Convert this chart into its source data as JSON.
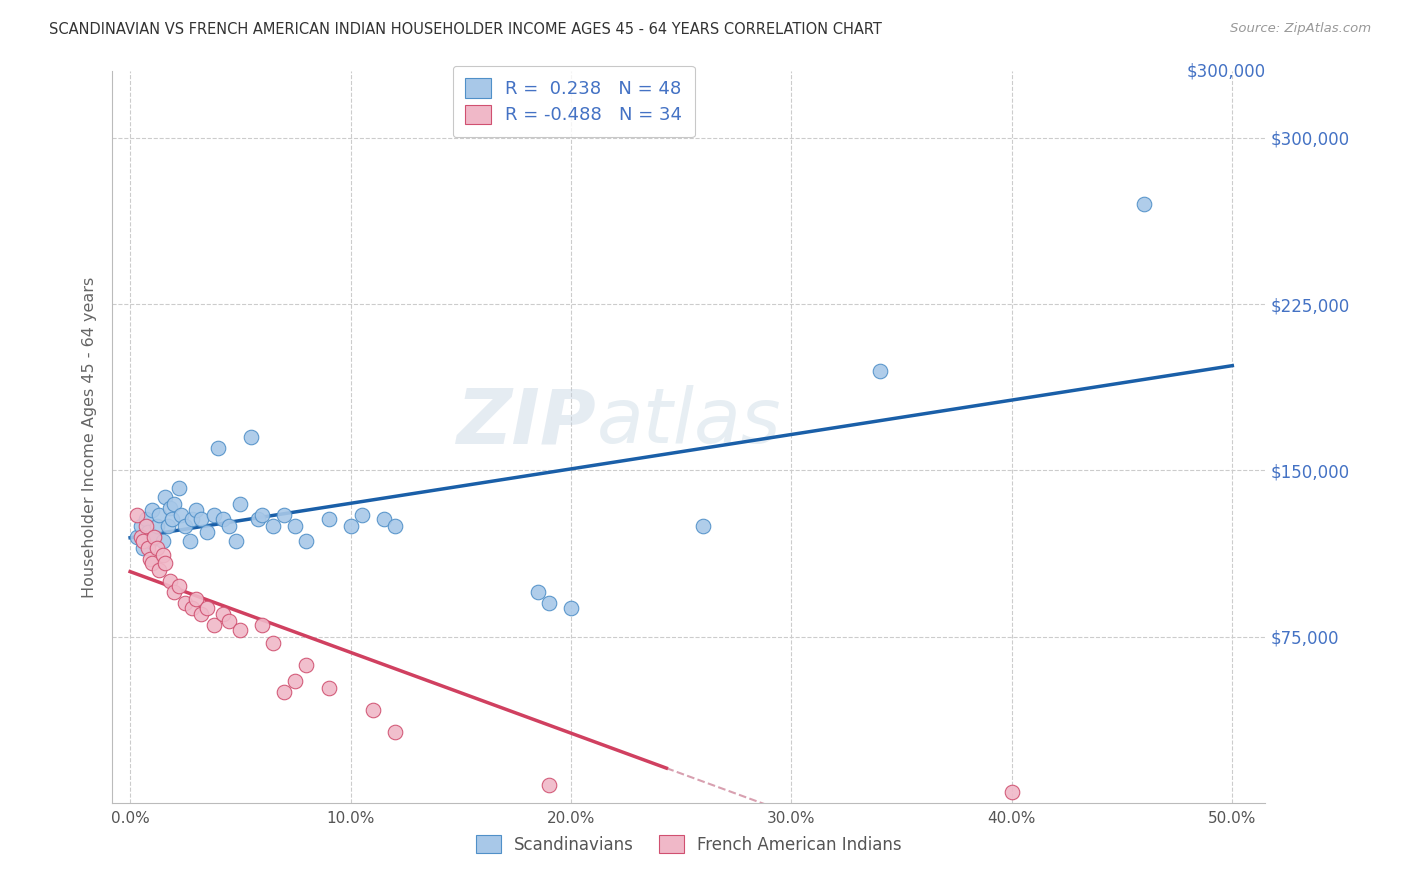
{
  "title": "SCANDINAVIAN VS FRENCH AMERICAN INDIAN HOUSEHOLDER INCOME AGES 45 - 64 YEARS CORRELATION CHART",
  "source": "Source: ZipAtlas.com",
  "ylabel": "Householder Income Ages 45 - 64 years",
  "xlabel_ticks": [
    "0.0%",
    "10.0%",
    "20.0%",
    "30.0%",
    "40.0%",
    "50.0%"
  ],
  "xlabel_vals": [
    0.0,
    0.1,
    0.2,
    0.3,
    0.4,
    0.5
  ],
  "ytick_labels": [
    "$75,000",
    "$150,000",
    "$225,000",
    "$300,000"
  ],
  "ytick_vals": [
    75000,
    150000,
    225000,
    300000
  ],
  "ylim": [
    0,
    330000
  ],
  "xlim": [
    -0.008,
    0.515
  ],
  "watermark_zip": "ZIP",
  "watermark_atlas": "atlas",
  "blue_scatter": [
    [
      0.003,
      120000
    ],
    [
      0.005,
      125000
    ],
    [
      0.006,
      115000
    ],
    [
      0.007,
      128000
    ],
    [
      0.008,
      122000
    ],
    [
      0.009,
      118000
    ],
    [
      0.01,
      132000
    ],
    [
      0.011,
      120000
    ],
    [
      0.012,
      125000
    ],
    [
      0.013,
      130000
    ],
    [
      0.015,
      118000
    ],
    [
      0.016,
      138000
    ],
    [
      0.017,
      125000
    ],
    [
      0.018,
      133000
    ],
    [
      0.019,
      128000
    ],
    [
      0.02,
      135000
    ],
    [
      0.022,
      142000
    ],
    [
      0.023,
      130000
    ],
    [
      0.025,
      125000
    ],
    [
      0.027,
      118000
    ],
    [
      0.028,
      128000
    ],
    [
      0.03,
      132000
    ],
    [
      0.032,
      128000
    ],
    [
      0.035,
      122000
    ],
    [
      0.038,
      130000
    ],
    [
      0.04,
      160000
    ],
    [
      0.042,
      128000
    ],
    [
      0.045,
      125000
    ],
    [
      0.048,
      118000
    ],
    [
      0.05,
      135000
    ],
    [
      0.055,
      165000
    ],
    [
      0.058,
      128000
    ],
    [
      0.06,
      130000
    ],
    [
      0.065,
      125000
    ],
    [
      0.07,
      130000
    ],
    [
      0.075,
      125000
    ],
    [
      0.08,
      118000
    ],
    [
      0.09,
      128000
    ],
    [
      0.1,
      125000
    ],
    [
      0.105,
      130000
    ],
    [
      0.115,
      128000
    ],
    [
      0.12,
      125000
    ],
    [
      0.185,
      95000
    ],
    [
      0.19,
      90000
    ],
    [
      0.2,
      88000
    ],
    [
      0.26,
      125000
    ],
    [
      0.34,
      195000
    ],
    [
      0.46,
      270000
    ]
  ],
  "pink_scatter": [
    [
      0.003,
      130000
    ],
    [
      0.005,
      120000
    ],
    [
      0.006,
      118000
    ],
    [
      0.007,
      125000
    ],
    [
      0.008,
      115000
    ],
    [
      0.009,
      110000
    ],
    [
      0.01,
      108000
    ],
    [
      0.011,
      120000
    ],
    [
      0.012,
      115000
    ],
    [
      0.013,
      105000
    ],
    [
      0.015,
      112000
    ],
    [
      0.016,
      108000
    ],
    [
      0.018,
      100000
    ],
    [
      0.02,
      95000
    ],
    [
      0.022,
      98000
    ],
    [
      0.025,
      90000
    ],
    [
      0.028,
      88000
    ],
    [
      0.03,
      92000
    ],
    [
      0.032,
      85000
    ],
    [
      0.035,
      88000
    ],
    [
      0.038,
      80000
    ],
    [
      0.042,
      85000
    ],
    [
      0.045,
      82000
    ],
    [
      0.05,
      78000
    ],
    [
      0.06,
      80000
    ],
    [
      0.065,
      72000
    ],
    [
      0.07,
      50000
    ],
    [
      0.075,
      55000
    ],
    [
      0.08,
      62000
    ],
    [
      0.09,
      52000
    ],
    [
      0.11,
      42000
    ],
    [
      0.12,
      32000
    ],
    [
      0.19,
      8000
    ],
    [
      0.4,
      5000
    ]
  ],
  "blue_color": "#a8c8e8",
  "pink_color": "#f0b8c8",
  "blue_edge_color": "#5090c8",
  "pink_edge_color": "#d05070",
  "blue_line_color": "#1a5fa8",
  "pink_line_color": "#d04060",
  "pink_line_dashed_color": "#d8a0b0",
  "background_color": "#ffffff",
  "grid_color": "#cccccc",
  "title_color": "#333333",
  "axis_label_color": "#666666",
  "right_axis_color": "#4472c4",
  "legend_text_color": "#4472c4"
}
